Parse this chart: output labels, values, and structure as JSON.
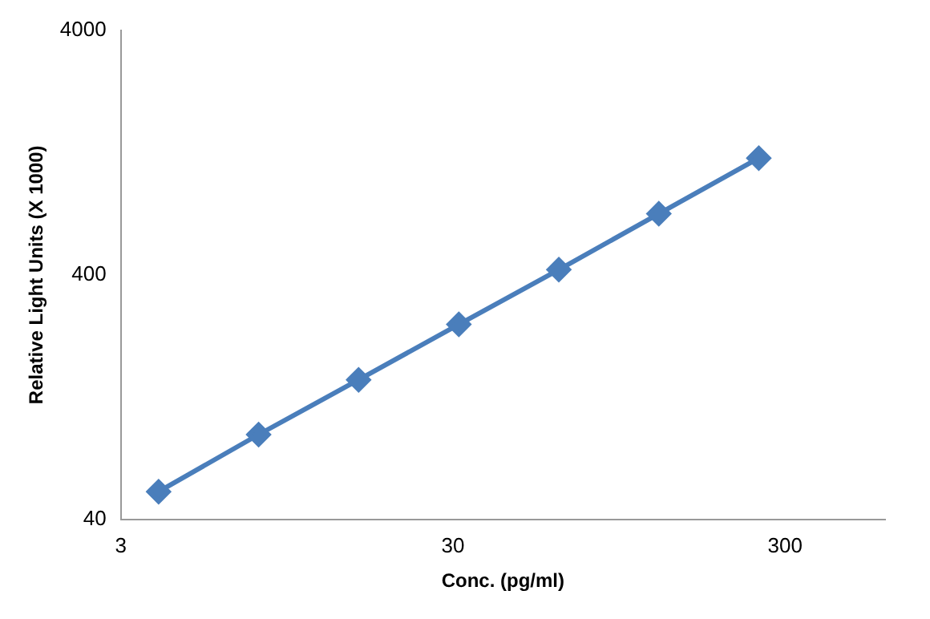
{
  "chart_data": {
    "type": "line",
    "xlabel": "Conc. (pg/ml)",
    "ylabel": "Relative Light Units (X 1000)",
    "x": [
      3.9,
      7.8,
      15.6,
      31.25,
      62.5,
      125,
      250
    ],
    "series": [
      {
        "color": "#4a7ebb",
        "values": [
          52,
          89,
          149,
          251,
          420,
          711,
          1200
        ]
      }
    ],
    "log": "xy",
    "xlim": [
      3,
      600
    ],
    "xticks": [
      3,
      30,
      300
    ],
    "ylim": [
      40,
      4000
    ],
    "yticks": [
      40,
      400,
      4000
    ],
    "grid": false,
    "legend": false,
    "marker": "diamond",
    "line_style": "solid"
  }
}
